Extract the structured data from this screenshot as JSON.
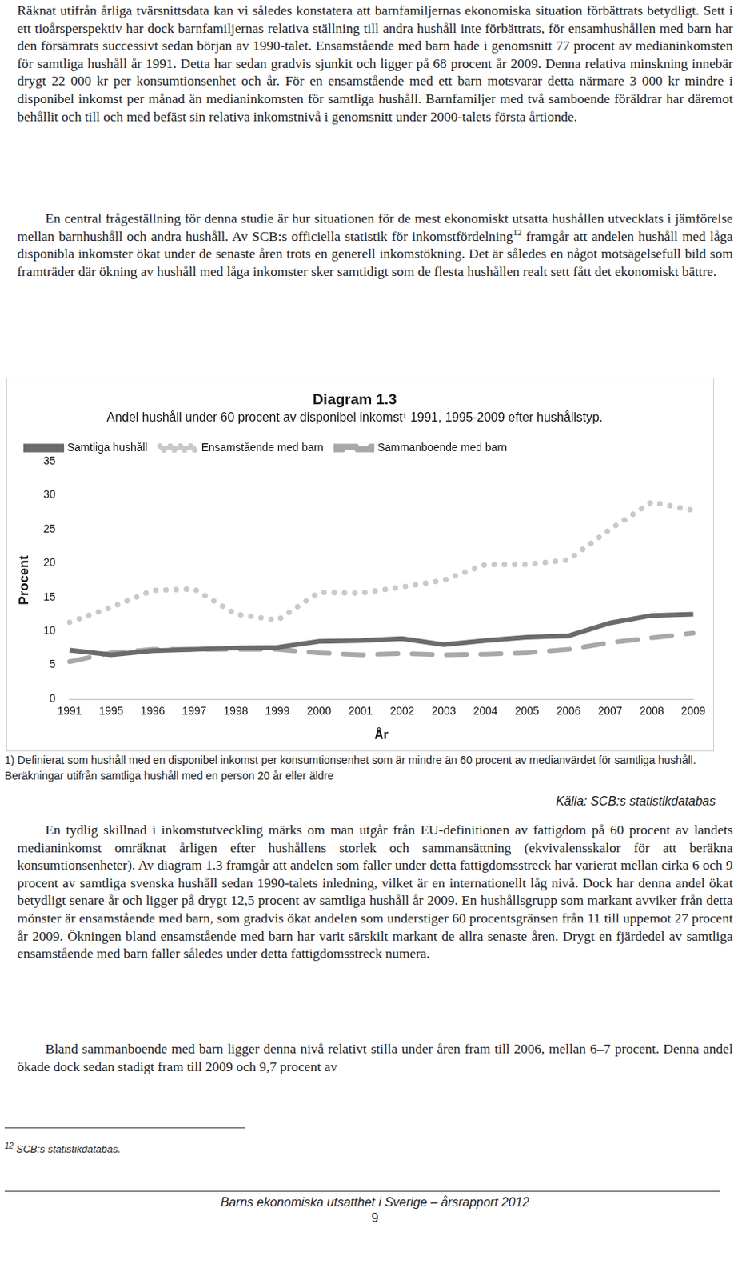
{
  "paragraphs_top": [
    [
      {
        "text": "Räknat utifrån årliga tvärsnittsdata kan vi således konstatera att barnfamiljernas ekonomiska situation förbättrats betydligt. Sett i ett tioårsperspektiv har dock barnfamiljernas relativa ställning till andra hushåll inte förbättrats, för ensamhushållen med barn har den försämrats successivt sedan början av 1990-talet. Ensamstående med barn hade i genomsnitt 77 procent av medianinkomsten för samtliga hushåll år 1991. Detta har sedan gradvis sjunkit och ligger på 68 procent år 2009. Denna relativa minskning innebär drygt 22 000 kr per konsumtionsenhet och år. För en ensamstående med ett barn motsvarar detta närmare 3 000 kr mindre i disponibel inkomst per månad än medianinkomsten för samtliga hushåll. Barnfamiljer med två samboende föräldrar har däremot behållit och till och med befäst sin relativa inkomstnivå i genomsnitt under 2000-talets första årtionde."
      }
    ],
    [
      {
        "text": "En central frågeställning för denna studie är hur situationen för de mest ekonomiskt utsatta hushållen utvecklats i jämförelse mellan barnhushåll och andra hushåll. Av SCB:s officiella statistik för inkomstfördelning"
      },
      {
        "sup": "12"
      },
      {
        "text": " framgår att andelen hushåll med låga disponibla inkomster ökat under de senaste åren trots en generell inkomstökning. Det är således en något motsägelsefull bild som framträder där ökning av hushåll med låga inkomster sker samtidigt som de flesta hushållen realt sett fått det ekonomiskt bättre."
      }
    ]
  ],
  "chart_data": {
    "type": "line",
    "title": "Diagram 1.3",
    "subtitle": "Andel hushåll under 60 procent av disponibel inkomst¹ 1991, 1995-2009 efter hushållstyp.",
    "x_label": "År",
    "y_label": "Procent",
    "categories": [
      "1991",
      "1995",
      "1996",
      "1997",
      "1998",
      "1999",
      "2000",
      "2001",
      "2002",
      "2003",
      "2004",
      "2005",
      "2006",
      "2007",
      "2008",
      "2009"
    ],
    "series": [
      {
        "name": "Samtliga hushåll",
        "color": "#6b6b6b",
        "line_style": "solid",
        "values": [
          7.2,
          6.5,
          7.1,
          7.3,
          7.5,
          7.6,
          8.5,
          8.6,
          8.9,
          8.0,
          8.6,
          9.1,
          9.3,
          11.2,
          12.3,
          12.5
        ]
      },
      {
        "name": "Ensamstående med barn",
        "color": "#c9c9c9",
        "line_style": "dotted",
        "values": [
          11.3,
          13.5,
          16.0,
          16.2,
          12.5,
          11.6,
          15.7,
          15.6,
          16.5,
          17.5,
          19.8,
          19.8,
          20.5,
          25.0,
          29.0,
          27.8
        ]
      },
      {
        "name": "Sammanboende med barn",
        "color": "#a8a8a8",
        "line_style": "dashed",
        "values": [
          5.5,
          6.8,
          7.3,
          7.3,
          7.3,
          7.3,
          6.8,
          6.5,
          6.7,
          6.5,
          6.6,
          6.8,
          7.3,
          8.3,
          9.0,
          9.7
        ]
      }
    ],
    "ylim": [
      0,
      35
    ],
    "yticks": [
      0,
      5,
      10,
      15,
      20,
      25,
      30,
      35
    ],
    "grid": false,
    "legend": "top-left"
  },
  "chart_note": "1) Definierat som hushåll med en disponibel inkomst per konsumtionsenhet som är mindre än 60 procent av medianvärdet för samtliga hushåll. Beräkningar utifrån samtliga hushåll med en person 20 år eller äldre",
  "source": "Källa: SCB:s statistikdatabas",
  "paragraphs_bottom": [
    [
      {
        "text": "En tydlig skillnad i inkomstutveckling märks om man utgår från EU-definitionen av fattigdom på 60 procent av landets medianinkomst omräknat årligen efter hushållens storlek och sammansättning (ekvivalensskalor för att beräkna konsumtionsenheter). Av diagram 1.3 framgår att andelen som faller under detta fattigdomsstreck har varierat mellan cirka 6 och 9 procent av samtliga svenska hushåll sedan 1990-talets inledning, vilket är en internationellt låg nivå. Dock har denna andel ökat betydligt senare år och ligger på drygt 12,5 procent av samtliga hushåll år 2009. En hushållsgrupp som markant avviker från detta mönster är ensamstående med barn, som gradvis ökat andelen som understiger 60 procentsgränsen från 11 till uppemot 27 procent år 2009. Ökningen bland ensamstående med barn har varit särskilt markant de allra senaste åren. Drygt en fjärdedel av samtliga ensamstående med barn faller således under detta fattigdomsstreck numera."
      }
    ],
    [
      {
        "text": "Bland sammanboende med barn ligger denna nivå relativt stilla under åren fram till 2006, mellan 6–7 procent. Denna andel ökade dock sedan stadigt fram till 2009 och 9,7 procent av"
      }
    ]
  ],
  "footnote": [
    {
      "sup": "12"
    },
    {
      "text": " SCB:s statistikdatabas."
    }
  ],
  "footer": {
    "title": "Barns ekonomiska utsatthet i Sverige – årsrapport 2012",
    "page": "9"
  }
}
